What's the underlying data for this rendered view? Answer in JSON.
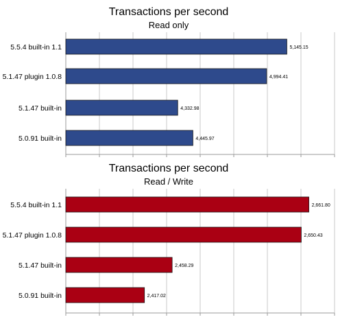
{
  "chart_data": [
    {
      "type": "bar",
      "orientation": "horizontal",
      "title": "Transactions per second",
      "subtitle": "Read only",
      "categories": [
        "5.5.4 built-in 1.1",
        "5.1.47 plugin 1.0.8",
        "5.1.47 built-in",
        "5.0.91 built-in"
      ],
      "values": [
        5145.15,
        4994.41,
        4332.98,
        4445.97
      ],
      "value_labels": [
        "5,145.15",
        "4,994.41",
        "4,332.98",
        "4,445.97"
      ],
      "xlim": [
        3500,
        5500
      ],
      "grid": true,
      "bar_color": "#2e4a8c"
    },
    {
      "type": "bar",
      "orientation": "horizontal",
      "title": "Transactions per second",
      "subtitle": "Read / Write",
      "categories": [
        "5.5.4 built-in 1.1",
        "5.1.47 plugin 1.0.8",
        "5.1.47 built-in",
        "5.0.91 built-in"
      ],
      "values": [
        2661.8,
        2650.43,
        2458.29,
        2417.02
      ],
      "value_labels": [
        "2,661.80",
        "2,650.43",
        "2,458.29",
        "2,417.02"
      ],
      "xlim": [
        2300,
        2700
      ],
      "grid": true,
      "bar_color": "#aa0013"
    }
  ]
}
